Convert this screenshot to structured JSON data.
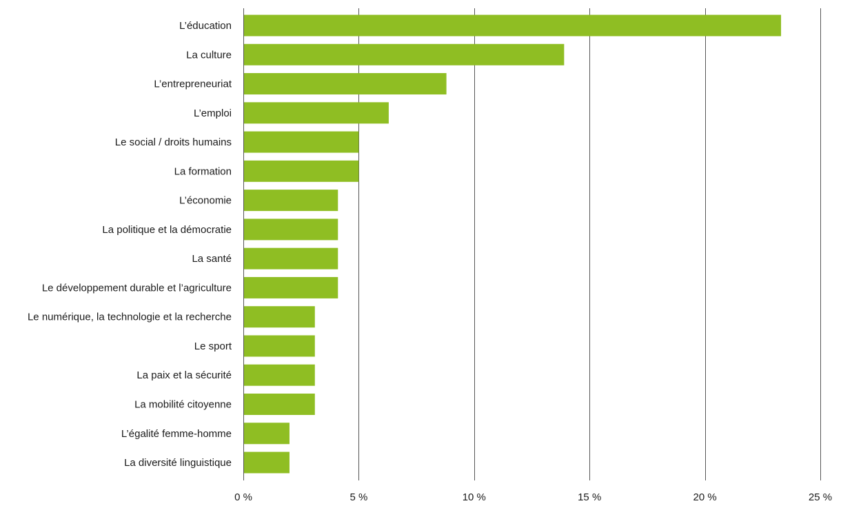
{
  "chart_data": {
    "type": "bar",
    "orientation": "horizontal",
    "categories": [
      "L’éducation",
      "La culture",
      "L’entrepreneuriat",
      "L’emploi",
      "Le social / droits humains",
      "La formation",
      "L’économie",
      "La politique et la démocratie",
      "La santé",
      "Le développement durable et l’agriculture",
      "Le numérique, la technologie et la recherche",
      "Le sport",
      "La paix et la sécurité",
      "La mobilité citoyenne",
      "L’égalité femme-homme",
      "La diversité linguistique"
    ],
    "values": [
      23.3,
      13.9,
      8.8,
      6.3,
      5.0,
      5.0,
      4.1,
      4.1,
      4.1,
      4.1,
      3.1,
      3.1,
      3.1,
      3.1,
      2.0,
      2.0
    ],
    "xlim": [
      0,
      25
    ],
    "xticks": [
      0,
      5,
      10,
      15,
      20,
      25
    ],
    "xtick_labels": [
      "0 %",
      "5 %",
      "10 %",
      "15 %",
      "20 %",
      "25 %"
    ],
    "grid": "vertical",
    "bar_color": "#8fbe23",
    "grid_color": "#555555",
    "legend": "none"
  }
}
